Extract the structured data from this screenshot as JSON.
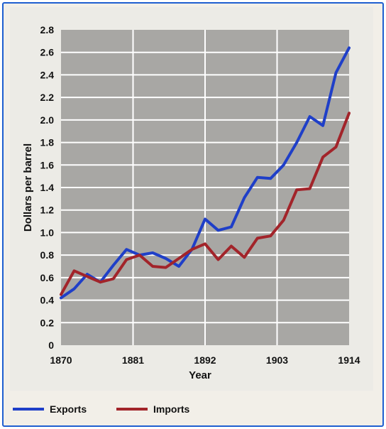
{
  "chart_data": {
    "type": "line",
    "title": "",
    "xlabel": "Year",
    "ylabel": "Dollars per barrel",
    "x_ticks": [
      "1870",
      "1881",
      "1892",
      "1903",
      "1914"
    ],
    "y_ticks": [
      "0",
      "0.2",
      "0.4",
      "0.6",
      "0.8",
      "1.0",
      "1.2",
      "1.4",
      "1.6",
      "1.8",
      "2.0",
      "2.2",
      "2.4",
      "2.6",
      "2.8"
    ],
    "xlim": [
      1870,
      1914
    ],
    "ylim": [
      0,
      2.8
    ],
    "grid": true,
    "legend_position": "bottom-left",
    "series": [
      {
        "name": "Exports",
        "color": "#1f3fc8",
        "x": [
          1870,
          1872,
          1874,
          1876,
          1878,
          1880,
          1882,
          1884,
          1886,
          1888,
          1890,
          1892,
          1894,
          1896,
          1898,
          1900,
          1902,
          1904,
          1906,
          1908,
          1910,
          1912,
          1914
        ],
        "y": [
          0.42,
          0.5,
          0.63,
          0.56,
          0.71,
          0.85,
          0.8,
          0.82,
          0.77,
          0.7,
          0.85,
          1.12,
          1.02,
          1.05,
          1.31,
          1.49,
          1.48,
          1.6,
          1.8,
          2.03,
          1.95,
          2.42,
          2.64
        ]
      },
      {
        "name": "Imports",
        "color": "#a2242a",
        "x": [
          1870,
          1872,
          1874,
          1876,
          1878,
          1880,
          1882,
          1884,
          1886,
          1888,
          1890,
          1892,
          1894,
          1896,
          1898,
          1900,
          1902,
          1904,
          1906,
          1908,
          1910,
          1912,
          1914
        ],
        "y": [
          0.45,
          0.66,
          0.61,
          0.56,
          0.59,
          0.76,
          0.8,
          0.7,
          0.69,
          0.77,
          0.85,
          0.9,
          0.76,
          0.88,
          0.78,
          0.95,
          0.97,
          1.11,
          1.38,
          1.39,
          1.67,
          1.76,
          2.06
        ]
      }
    ]
  }
}
